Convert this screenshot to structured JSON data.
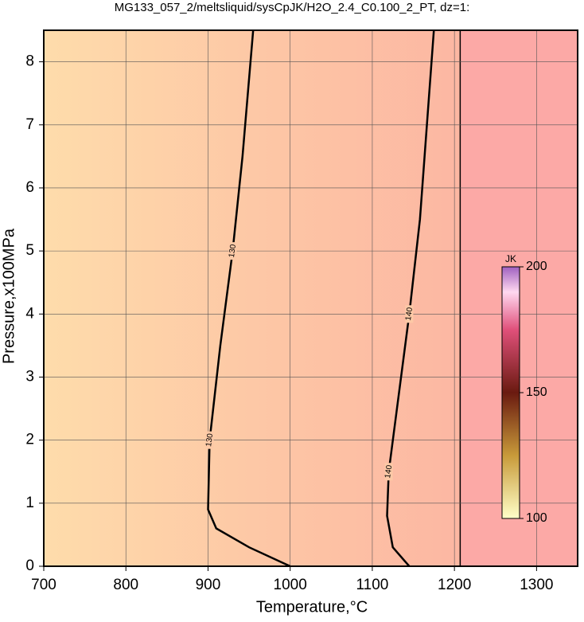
{
  "chart_data": {
    "type": "contour",
    "title": "MG133_057_2/meltsliquid/sysCpJK/H2O_2.4_C0.100_2_PT, dz=1:",
    "xlabel": "Temperature,°C",
    "ylabel": "Pressure,x100MPa",
    "xlim": [
      700,
      1350
    ],
    "ylim": [
      0,
      8.5
    ],
    "xticks": [
      700,
      800,
      900,
      1000,
      1100,
      1200,
      1300
    ],
    "yticks": [
      0,
      1,
      2,
      3,
      4,
      5,
      6,
      7,
      8
    ],
    "grid": true,
    "contours": [
      {
        "level": 130,
        "color": "#000000",
        "x": [
          1000,
          950,
          910,
          900,
          902,
          915,
          930,
          942,
          955
        ],
        "y": [
          0,
          0.3,
          0.6,
          0.9,
          2,
          3.5,
          5,
          6.5,
          8.5
        ]
      },
      {
        "level": 140,
        "color": "#000000",
        "x": [
          1145,
          1125,
          1118,
          1120,
          1130,
          1145,
          1158,
          1175
        ],
        "y": [
          0,
          0.3,
          0.8,
          1.5,
          2.5,
          4,
          5.5,
          8.5
        ]
      }
    ],
    "colorbar": {
      "label": "JK",
      "lim": [
        100,
        200
      ],
      "ticks": [
        100,
        150,
        200
      ]
    }
  }
}
